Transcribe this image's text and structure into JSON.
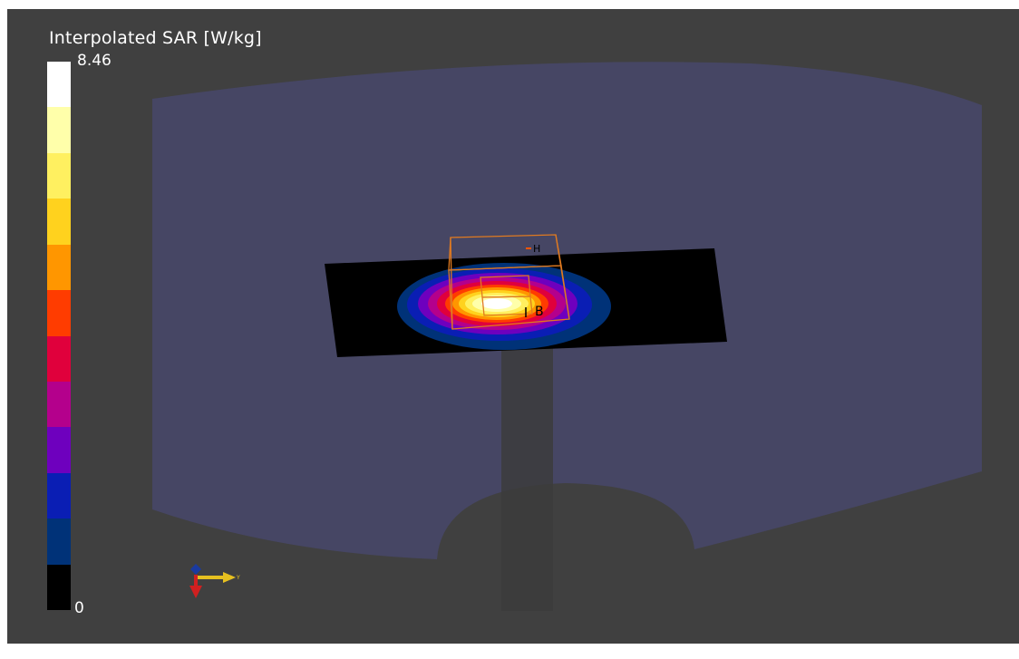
{
  "legend": {
    "title": "Interpolated SAR [W/kg]",
    "max_label": "8.46",
    "min_label": "0",
    "colors": [
      "#ffffff",
      "#ffffaa",
      "#fff060",
      "#ffd21e",
      "#ff9600",
      "#ff3c00",
      "#e0003c",
      "#b4008c",
      "#6e00be",
      "#0a1eb4",
      "#003278",
      "#000000"
    ]
  },
  "scene": {
    "probe_labels": {
      "h": "H",
      "b": "B"
    },
    "axis_label": "Y",
    "colors": {
      "background": "#404040",
      "phantom": "#464664",
      "plane": "#000000",
      "wireframe": "#e07a20"
    }
  }
}
